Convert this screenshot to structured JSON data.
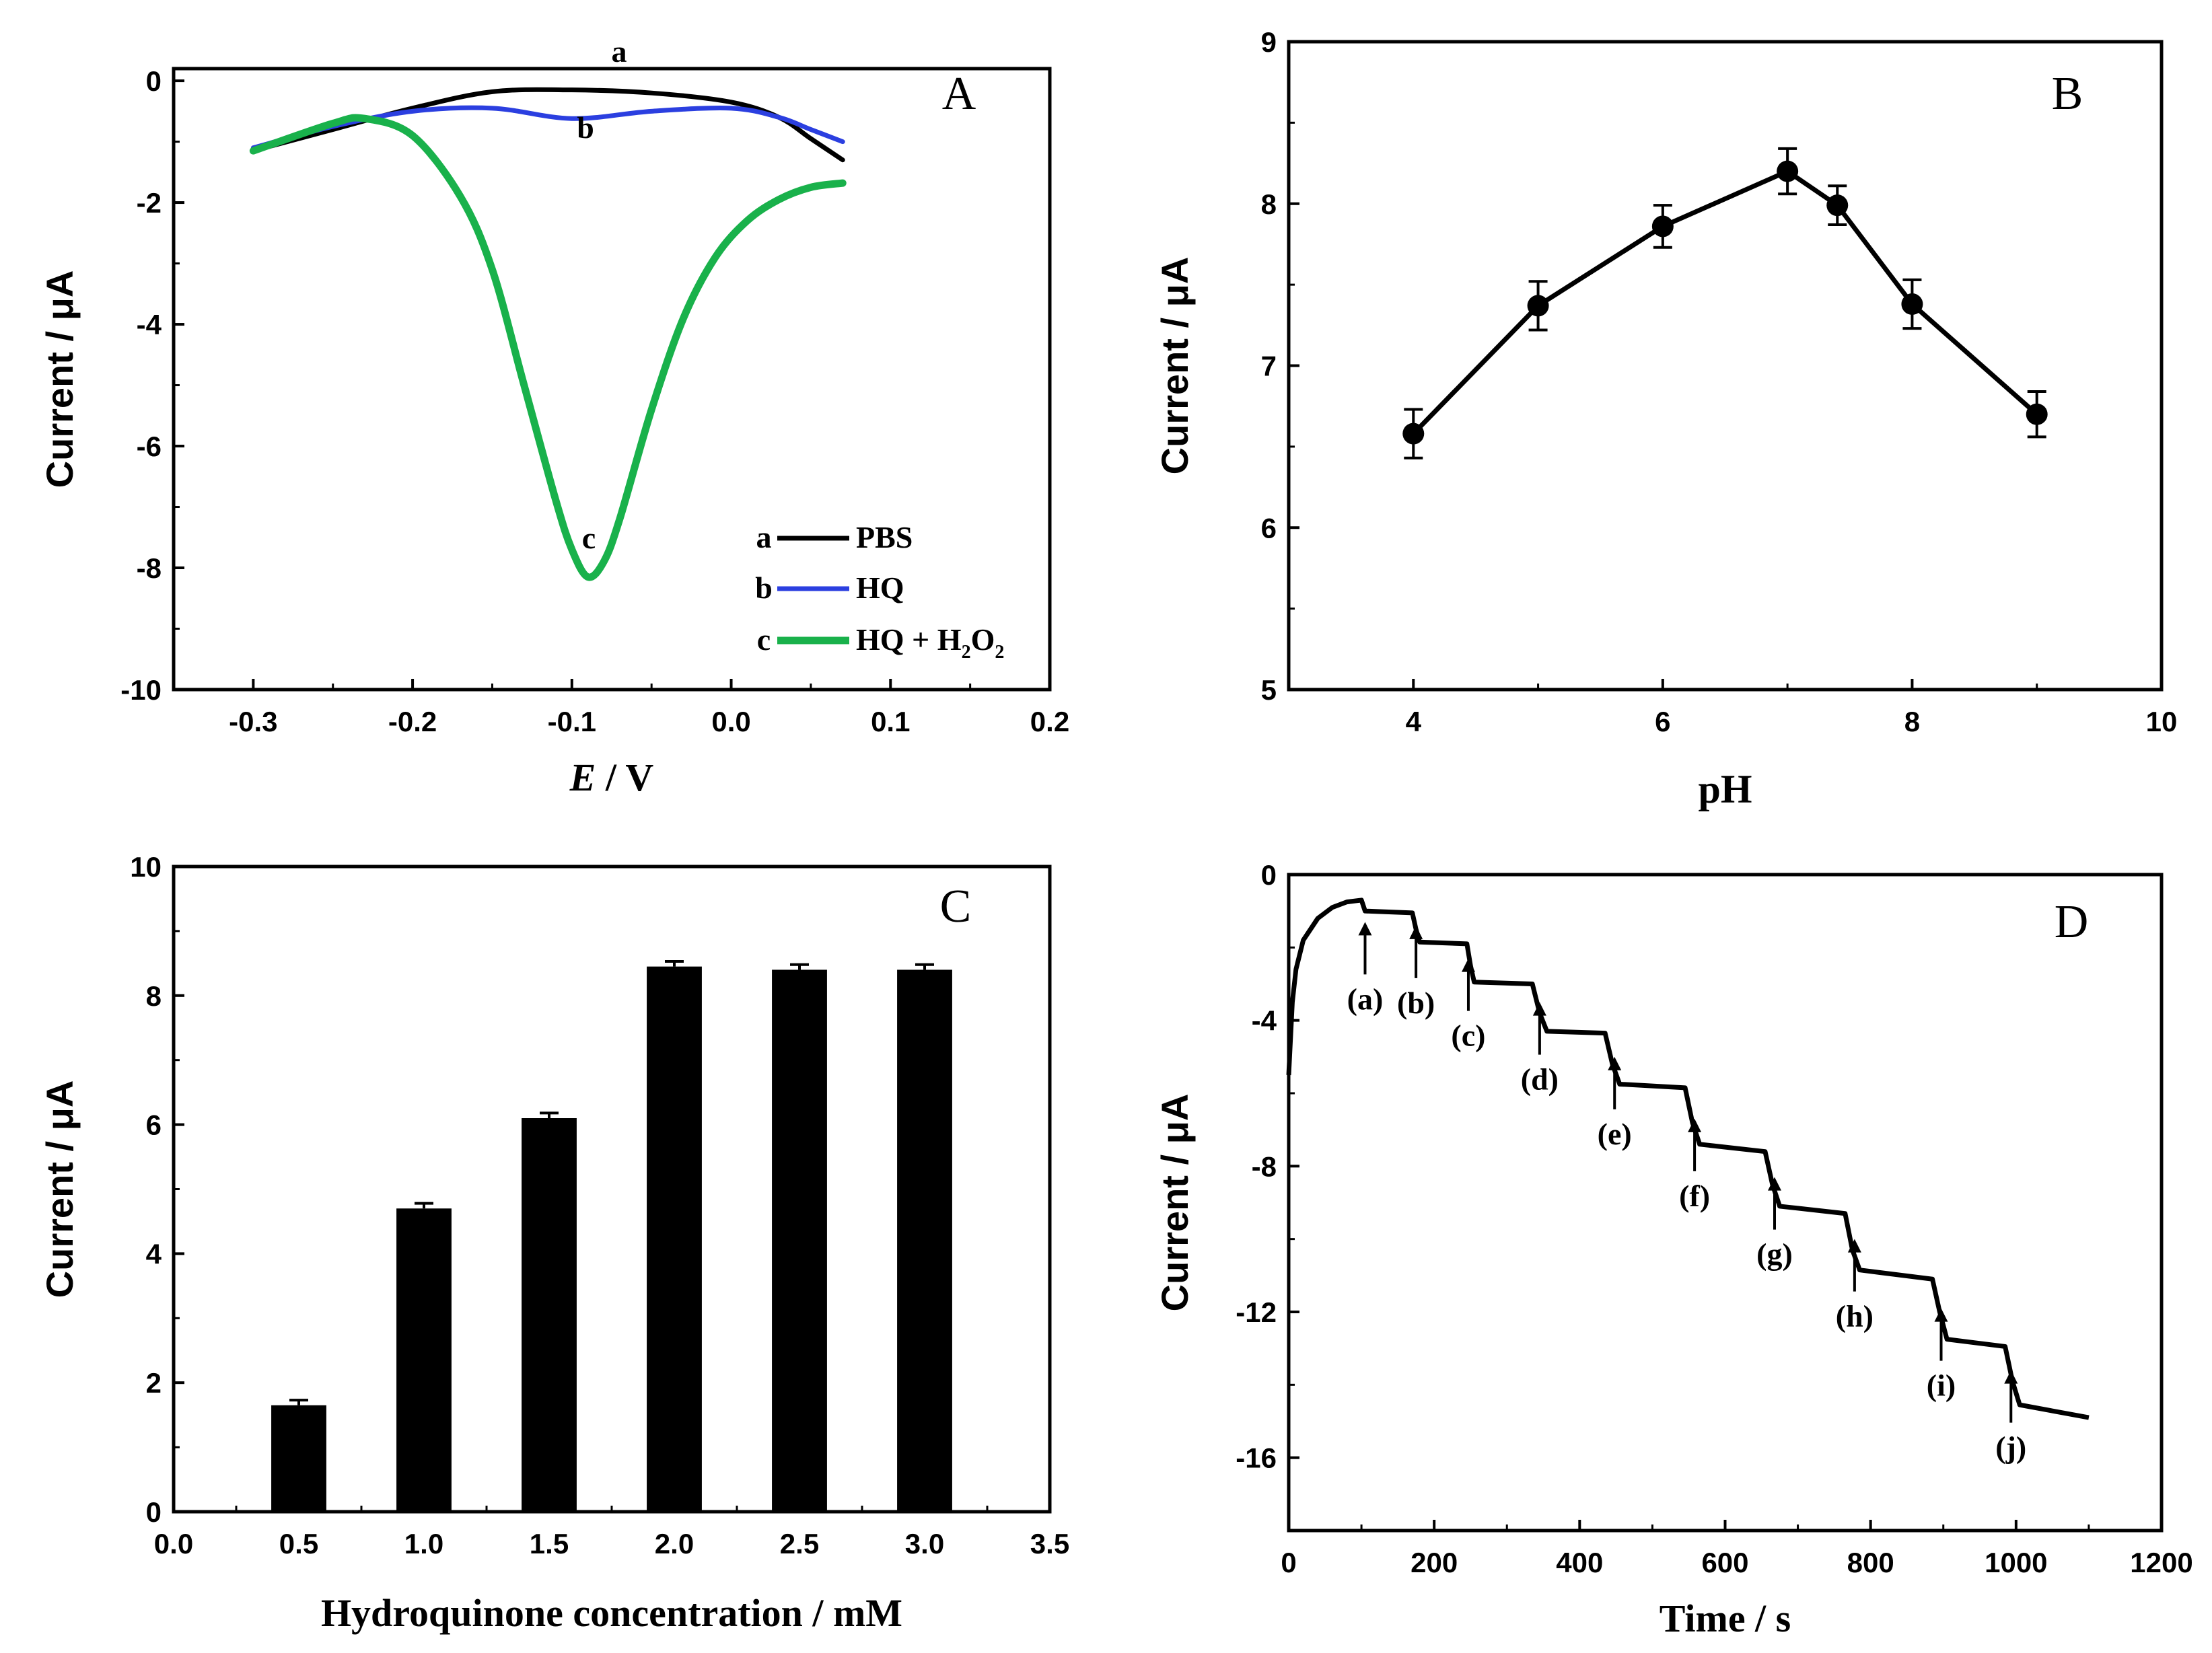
{
  "chart_data": [
    {
      "panel": "A",
      "type": "line",
      "xlabel_italic": "E",
      "xlabel_rest": " / V",
      "ylabel": "Current / μA",
      "xlim": [
        -0.35,
        0.2
      ],
      "ylim": [
        -10,
        0.2
      ],
      "xticks": [
        -0.3,
        -0.2,
        -0.1,
        0.0,
        0.1,
        0.2
      ],
      "xticklabels": [
        "-0.3",
        "-0.2",
        "-0.1",
        "0.0",
        "0.1",
        "0.2"
      ],
      "yticks": [
        0,
        -2,
        -4,
        -6,
        -8,
        -10
      ],
      "yticklabels": [
        "0",
        "-2",
        "-4",
        "-6",
        "-8",
        "-10"
      ],
      "legend_position": "bottom-right",
      "series": [
        {
          "name": "PBS",
          "letter": "a",
          "color": "#000000",
          "x": [
            -0.3,
            -0.25,
            -0.2,
            -0.15,
            -0.1,
            -0.05,
            0.0,
            0.03,
            0.05,
            0.07
          ],
          "y": [
            -1.15,
            -0.8,
            -0.45,
            -0.18,
            -0.15,
            -0.2,
            -0.35,
            -0.6,
            -0.95,
            -1.3
          ]
        },
        {
          "name": "HQ",
          "letter": "b",
          "color": "#2b3fe0",
          "x": [
            -0.3,
            -0.25,
            -0.2,
            -0.15,
            -0.1,
            -0.05,
            0.0,
            0.03,
            0.05,
            0.07
          ],
          "y": [
            -1.1,
            -0.75,
            -0.5,
            -0.45,
            -0.62,
            -0.5,
            -0.45,
            -0.6,
            -0.8,
            -1.0
          ]
        },
        {
          "name": "HQ + H2O2",
          "letter": "c",
          "color": "#19b14b",
          "x": [
            -0.3,
            -0.25,
            -0.23,
            -0.2,
            -0.17,
            -0.15,
            -0.13,
            -0.11,
            -0.1,
            -0.09,
            -0.08,
            -0.07,
            -0.05,
            -0.03,
            -0.01,
            0.01,
            0.03,
            0.05,
            0.07
          ],
          "y": [
            -1.15,
            -0.7,
            -0.62,
            -0.9,
            -1.9,
            -3.1,
            -5.0,
            -6.9,
            -7.7,
            -8.15,
            -7.9,
            -7.2,
            -5.4,
            -3.9,
            -2.9,
            -2.3,
            -1.95,
            -1.75,
            -1.68
          ]
        }
      ],
      "legend": [
        {
          "letter": "a",
          "text": "PBS"
        },
        {
          "letter": "b",
          "text": "HQ"
        },
        {
          "letter": "c",
          "text_main": "HQ + H",
          "sub1": "2",
          "text_mid": "O",
          "sub2": "2"
        }
      ],
      "curve_labels": [
        "a",
        "b",
        "c"
      ]
    },
    {
      "panel": "B",
      "type": "line",
      "xlabel": "pH",
      "ylabel": "Current / μA",
      "xlim": [
        3,
        10
      ],
      "ylim": [
        5,
        9
      ],
      "xticks": [
        4,
        6,
        8,
        10
      ],
      "xticklabels": [
        "4",
        "6",
        "8",
        "10"
      ],
      "yticks": [
        5,
        6,
        7,
        8,
        9
      ],
      "yticklabels": [
        "5",
        "6",
        "7",
        "8",
        "9"
      ],
      "series": [
        {
          "x": [
            4,
            5,
            6,
            7,
            7.4,
            8,
            9
          ],
          "y": [
            6.58,
            7.37,
            7.86,
            8.2,
            7.99,
            7.38,
            6.7
          ],
          "err": [
            0.15,
            0.15,
            0.13,
            0.14,
            0.12,
            0.15,
            0.14
          ]
        }
      ]
    },
    {
      "panel": "C",
      "type": "bar",
      "xlabel": "Hydroquinone concentration / mM",
      "ylabel": "Current / μA",
      "xlim": [
        0,
        3.5
      ],
      "ylim": [
        0,
        10
      ],
      "xticks": [
        0,
        0.5,
        1.0,
        1.5,
        2.0,
        2.5,
        3.0,
        3.5
      ],
      "xticklabels": [
        "0.0",
        "0.5",
        "1.0",
        "1.5",
        "2.0",
        "2.5",
        "3.0",
        "3.5"
      ],
      "yticks": [
        0,
        2,
        4,
        6,
        8,
        10
      ],
      "yticklabels": [
        "0",
        "2",
        "4",
        "6",
        "8",
        "10"
      ],
      "x": [
        0.5,
        1.0,
        1.5,
        2.0,
        2.5,
        3.0
      ],
      "values": [
        1.65,
        4.7,
        6.1,
        8.45,
        8.4,
        8.4
      ],
      "err": [
        0.08,
        0.08,
        0.08,
        0.08,
        0.08,
        0.08
      ]
    },
    {
      "panel": "D",
      "type": "line",
      "xlabel": "Time / s",
      "ylabel": "Current / μA",
      "xlim": [
        0,
        1200
      ],
      "ylim": [
        -18,
        0
      ],
      "xticks": [
        0,
        200,
        400,
        600,
        800,
        1000,
        1200
      ],
      "xticklabels": [
        "0",
        "200",
        "400",
        "600",
        "800",
        "1000",
        "1200"
      ],
      "yticks": [
        0,
        -4,
        -8,
        -12,
        -16
      ],
      "yticklabels": [
        "0",
        "-4",
        "-8",
        "-12",
        "-16"
      ],
      "series": [
        {
          "x": [
            0,
            5,
            10,
            20,
            40,
            60,
            80,
            100,
            105,
            170,
            175,
            180,
            245,
            250,
            255,
            335,
            345,
            355,
            435,
            445,
            455,
            545,
            555,
            565,
            655,
            665,
            675,
            765,
            775,
            785,
            885,
            895,
            905,
            985,
            995,
            1005,
            1100
          ],
          "y": [
            -5.5,
            -3.5,
            -2.6,
            -1.8,
            -1.2,
            -0.9,
            -0.75,
            -0.7,
            -1.0,
            -1.05,
            -1.5,
            -1.85,
            -1.9,
            -2.5,
            -2.95,
            -3.0,
            -3.8,
            -4.3,
            -4.35,
            -5.2,
            -5.75,
            -5.85,
            -6.8,
            -7.4,
            -7.6,
            -8.5,
            -9.1,
            -9.3,
            -10.3,
            -10.85,
            -11.1,
            -12.0,
            -12.75,
            -12.95,
            -13.9,
            -14.55,
            -14.9
          ]
        }
      ],
      "arrows": [
        {
          "label": "(a)",
          "x": 105,
          "tip": -1.3
        },
        {
          "label": "(b)",
          "x": 175,
          "tip": -1.4
        },
        {
          "label": "(c)",
          "x": 247,
          "tip": -2.3
        },
        {
          "label": "(d)",
          "x": 345,
          "tip": -3.5
        },
        {
          "label": "(e)",
          "x": 448,
          "tip": -5.0
        },
        {
          "label": "(f)",
          "x": 558,
          "tip": -6.7
        },
        {
          "label": "(g)",
          "x": 668,
          "tip": -8.3
        },
        {
          "label": "(h)",
          "x": 778,
          "tip": -10.0
        },
        {
          "label": "(i)",
          "x": 897,
          "tip": -11.9
        },
        {
          "label": "(j)",
          "x": 993,
          "tip": -13.6
        }
      ]
    }
  ]
}
